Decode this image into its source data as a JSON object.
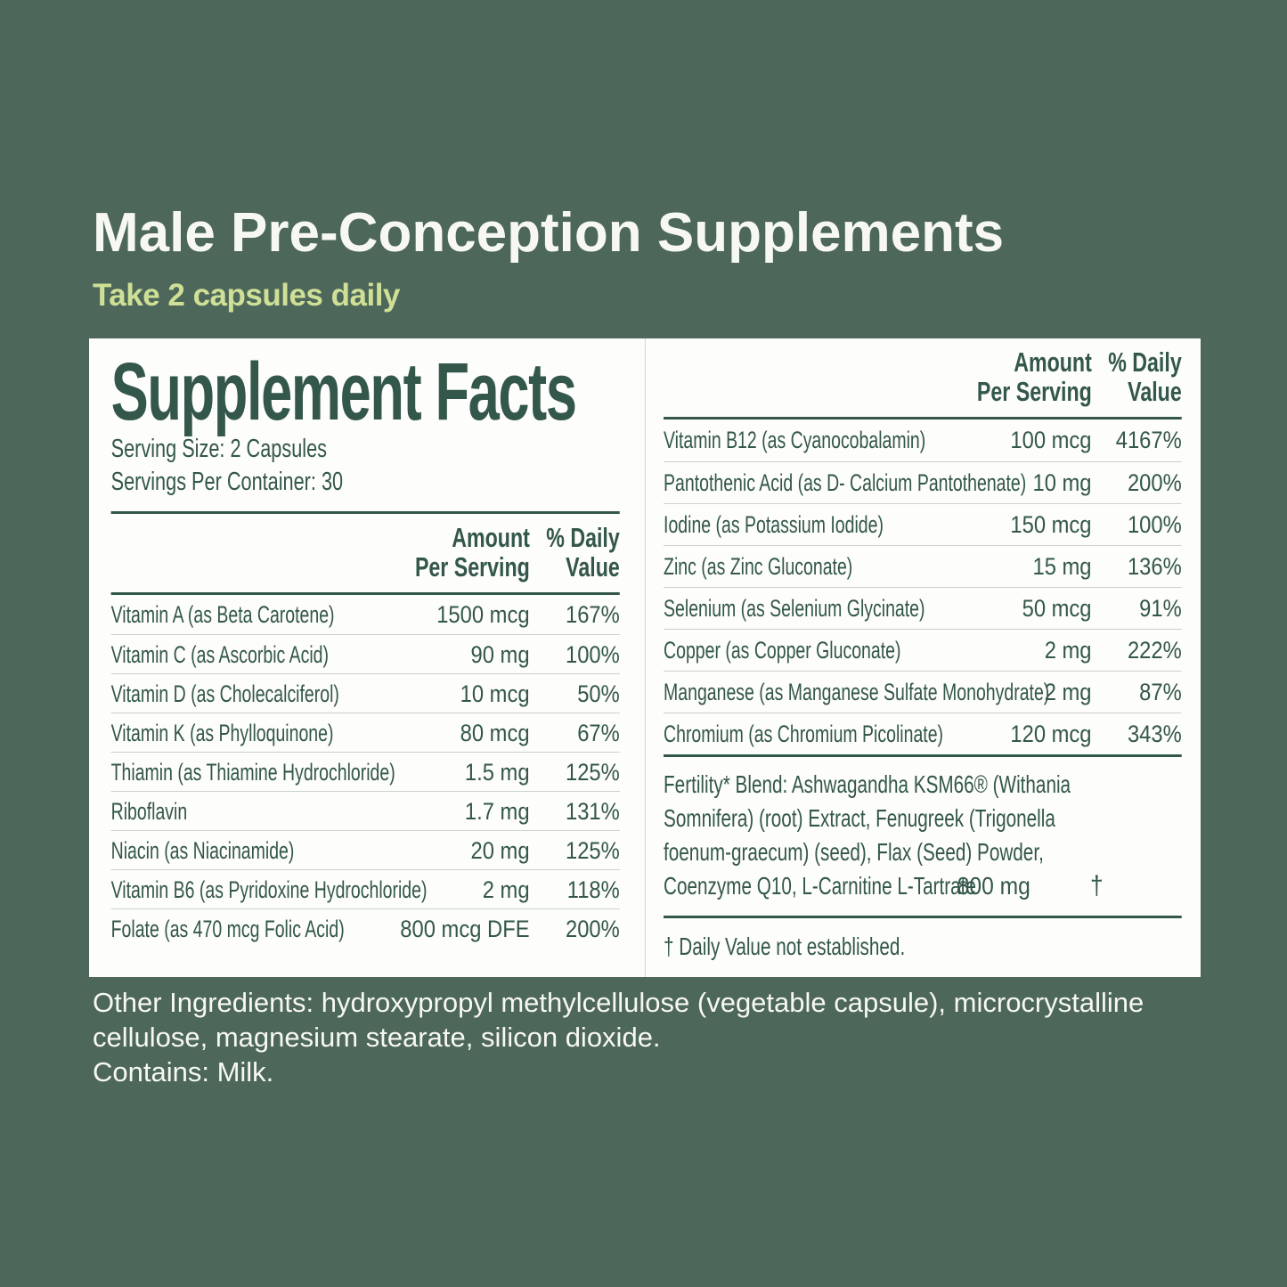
{
  "colors": {
    "background": "#4d675a",
    "panel": "#fdfdfb",
    "dark_green": "#33574a",
    "accent_green": "#cfe096",
    "separator": "#c9d3ca",
    "white_text": "#f7f8f3"
  },
  "header": {
    "title": "Male Pre-Conception Supplements",
    "subtitle": "Take 2 capsules daily"
  },
  "panel": {
    "title": "Supplement Facts",
    "serving_size": "Serving Size: 2 Capsules",
    "servings_per_container": "Servings Per Container: 30",
    "columns": {
      "amount_line1": "Amount",
      "amount_line2": "Per Serving",
      "dv_line1": "% Daily",
      "dv_line2": "Value"
    },
    "left_rows": [
      {
        "name": "Vitamin A (as Beta Carotene)",
        "amount": "1500 mcg",
        "dv": "167%"
      },
      {
        "name": "Vitamin C (as Ascorbic Acid)",
        "amount": "90 mg",
        "dv": "100%"
      },
      {
        "name": "Vitamin D (as Cholecalciferol)",
        "amount": "10 mcg",
        "dv": "50%"
      },
      {
        "name": "Vitamin K (as Phylloquinone)",
        "amount": "80 mcg",
        "dv": "67%"
      },
      {
        "name": "Thiamin (as Thiamine Hydrochloride)",
        "amount": "1.5 mg",
        "dv": "125%"
      },
      {
        "name": "Riboflavin",
        "amount": "1.7 mg",
        "dv": "131%"
      },
      {
        "name": "Niacin (as Niacinamide)",
        "amount": "20 mg",
        "dv": "125%"
      },
      {
        "name": "Vitamin B6 (as Pyridoxine Hydrochloride)",
        "amount": "2 mg",
        "dv": "118%"
      },
      {
        "name": "Folate (as 470 mcg Folic Acid)",
        "amount": "800 mcg DFE",
        "dv": "200%"
      }
    ],
    "right_rows": [
      {
        "name": "Vitamin B12 (as Cyanocobalamin)",
        "amount": "100 mcg",
        "dv": "4167%"
      },
      {
        "name": "Pantothenic Acid (as D- Calcium Pantothenate)",
        "amount": "10 mg",
        "dv": "200%"
      },
      {
        "name": "Iodine (as Potassium Iodide)",
        "amount": "150 mcg",
        "dv": "100%"
      },
      {
        "name": "Zinc (as Zinc Gluconate)",
        "amount": "15 mg",
        "dv": "136%"
      },
      {
        "name": "Selenium (as Selenium Glycinate)",
        "amount": "50 mcg",
        "dv": "91%"
      },
      {
        "name": "Copper (as Copper Gluconate)",
        "amount": "2 mg",
        "dv": "222%"
      },
      {
        "name": "Manganese (as Manganese Sulfate Monohydrate)",
        "amount": "2 mg",
        "dv": "87%"
      },
      {
        "name": "Chromium (as Chromium Picolinate)",
        "amount": "120 mcg",
        "dv": "343%"
      }
    ],
    "blend": {
      "line1": "Fertility* Blend: Ashwagandha KSM66® (Withania",
      "line2": "Somnifera) (root) Extract, Fenugreek (Trigonella",
      "line3": "foenum-graecum) (seed), Flax (Seed) Powder,",
      "line4": "Coenzyme Q10, L-Carnitine L-Tartrate",
      "amount": "800 mg",
      "dv": "†"
    },
    "footnote": "† Daily Value not established."
  },
  "footer": {
    "line1": "Other Ingredients: hydroxypropyl methylcellulose (vegetable capsule), microcrystalline",
    "line2": "cellulose, magnesium stearate, silicon dioxide.",
    "line3": "Contains: Milk."
  }
}
